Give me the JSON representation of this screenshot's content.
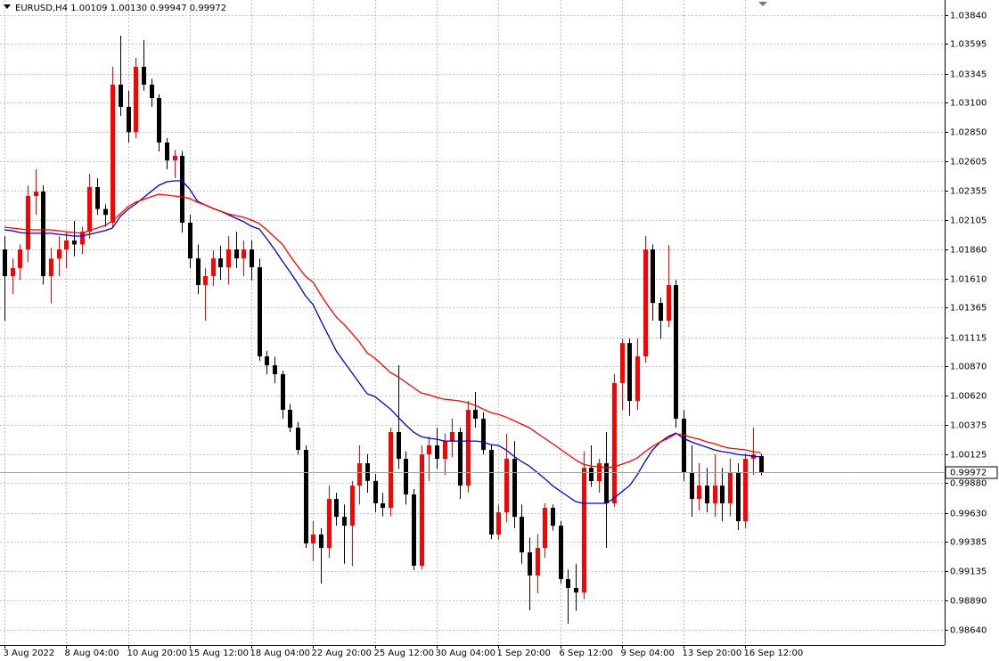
{
  "chart_data": {
    "type": "candlestick",
    "title": "EURUSD,H4  1.00109 1.00130 0.99947 0.99972",
    "categories": [
      "3 Aug 2022",
      null,
      null,
      null,
      null,
      null,
      null,
      null,
      "8 Aug 04:00",
      null,
      null,
      null,
      null,
      null,
      null,
      null,
      "10 Aug 20:00",
      null,
      null,
      null,
      null,
      null,
      null,
      null,
      "15 Aug 12:00",
      null,
      null,
      null,
      null,
      null,
      null,
      null,
      "18 Aug 04:00",
      null,
      null,
      null,
      null,
      null,
      null,
      null,
      "22 Aug 20:00",
      null,
      null,
      null,
      null,
      null,
      null,
      null,
      "25 Aug 12:00",
      null,
      null,
      null,
      null,
      null,
      null,
      null,
      "30 Aug 04:00",
      null,
      null,
      null,
      null,
      null,
      null,
      null,
      "1 Sep 20:00",
      null,
      null,
      null,
      null,
      null,
      null,
      null,
      "6 Sep 12:00",
      null,
      null,
      null,
      null,
      null,
      null,
      null,
      "9 Sep 04:00",
      null,
      null,
      null,
      null,
      null,
      null,
      null,
      "13 Sep 20:00",
      null,
      null,
      null,
      null,
      null,
      null,
      null,
      "16 Sep 12:00",
      null,
      null
    ],
    "open": [
      1.01858,
      1.01632,
      1.017,
      1.01858,
      1.0231,
      1.02348,
      1.01632,
      1.0178,
      1.01858,
      1.01933,
      1.019,
      1.02008,
      1.02385,
      1.022,
      1.02084,
      1.03252,
      1.03064,
      1.0285,
      1.03403,
      1.03252,
      1.03139,
      1.02762,
      1.02611,
      1.0265,
      1.02084,
      1.01782,
      1.01556,
      1.01632,
      1.01782,
      1.01707,
      1.01858,
      1.01782,
      1.01858,
      1.01707,
      1.00953,
      1.00878,
      1.00802,
      1.00501,
      1.0035,
      1.00162,
      0.99371,
      0.99446,
      0.99333,
      0.99747,
      0.99596,
      0.99521,
      0.9986,
      1.00049,
      0.999,
      0.9971,
      0.99672,
      1.00313,
      1.00087,
      0.99785,
      0.99182,
      1.00124,
      1.002,
      1.00087,
      1.00237,
      1.00313,
      0.9986,
      1.00501,
      1.00426,
      1.00162,
      0.99446,
      0.99634,
      1.00087,
      0.99596,
      0.99295,
      0.991,
      0.99333,
      0.99672,
      0.99521,
      0.99069,
      0.98994,
      0.98956,
      1.00011,
      0.99898,
      1.00049,
      0.9971,
      1.00727,
      1.01066,
      1.00576,
      1.00953,
      1.01858,
      1.01405,
      1.01255,
      1.01556,
      1.00426,
      0.99973,
      0.99747,
      0.9986,
      0.9971,
      0.9986,
      0.9971,
      0.99973,
      0.99559,
      1.00087,
      1.00109
    ],
    "high": [
      1.0197,
      1.0178,
      1.019,
      1.024,
      1.02536,
      1.024,
      1.0187,
      1.0197,
      1.02,
      1.021,
      1.0205,
      1.02498,
      1.0246,
      1.0224,
      1.03403,
      1.03667,
      1.032,
      1.03478,
      1.03629,
      1.033,
      1.0317,
      1.028,
      1.027,
      1.0269,
      1.0215,
      1.019,
      1.017,
      1.0185,
      1.0189,
      1.01971,
      1.02008,
      1.01933,
      1.01933,
      1.0178,
      1.01,
      1.0095,
      1.0083,
      1.0055,
      1.004,
      1.002,
      0.9956,
      0.995,
      0.9986,
      0.998,
      0.997,
      0.999,
      1.002,
      1.00126,
      0.9996,
      0.998,
      1.0035,
      1.00878,
      1.0015,
      0.9983,
      1.002,
      1.00275,
      1.0035,
      1.003,
      1.00426,
      1.0035,
      1.00576,
      1.00652,
      1.0048,
      1.002,
      0.997,
      1.003,
      1.00237,
      0.997,
      0.9942,
      0.9945,
      0.9971,
      0.997,
      0.9956,
      0.9915,
      0.992,
      1.0015,
      1.002,
      1.00087,
      1.00313,
      1.00802,
      1.01104,
      1.01104,
      1.01104,
      1.01971,
      1.019,
      1.0145,
      1.01895,
      1.016,
      1.005,
      1.002,
      1.0005,
      1.00011,
      1.00124,
      1.00011,
      1.00087,
      1.00049,
      1.0013,
      1.0035,
      1.0013
    ],
    "low": [
      1.01255,
      1.0148,
      1.016,
      1.0175,
      1.0215,
      1.0156,
      1.014,
      1.0163,
      1.017,
      1.018,
      1.0182,
      1.0195,
      1.0215,
      1.0205,
      1.0205,
      1.02988,
      1.02762,
      1.028,
      1.032,
      1.03064,
      1.02687,
      1.02536,
      1.02461,
      1.02,
      1.017,
      1.0148,
      1.01255,
      1.0155,
      1.016,
      1.0156,
      1.017,
      1.01632,
      1.01594,
      1.00915,
      1.008,
      1.00727,
      1.00426,
      1.00313,
      1.00124,
      0.99333,
      0.9922,
      0.99031,
      0.9925,
      0.99521,
      0.992,
      0.9918,
      0.997,
      0.998,
      0.99634,
      0.996,
      0.996,
      1.0,
      0.997,
      0.99145,
      0.9915,
      0.999,
      1.0,
      0.9995,
      1.001,
      0.99747,
      0.998,
      1.0035,
      1.00124,
      0.99408,
      0.994,
      0.9955,
      0.995,
      0.992,
      0.98805,
      0.9895,
      0.9925,
      0.9948,
      0.99031,
      0.98692,
      0.988,
      0.989,
      0.9985,
      0.998,
      0.99333,
      0.9968,
      1.00501,
      1.0045,
      1.005,
      1.009,
      1.01255,
      1.011,
      1.012,
      1.0035,
      0.999,
      0.99596,
      0.9965,
      0.99634,
      0.99596,
      0.99559,
      0.996,
      0.99484,
      0.995,
      0.9995,
      0.99947
    ],
    "close": [
      1.01632,
      1.017,
      1.01858,
      1.0231,
      1.02348,
      1.01632,
      1.0178,
      1.01858,
      1.01933,
      1.019,
      1.02008,
      1.02385,
      1.022,
      1.0215,
      1.03252,
      1.03064,
      1.0285,
      1.03403,
      1.03252,
      1.03139,
      1.02762,
      1.02611,
      1.0265,
      1.02084,
      1.01782,
      1.01556,
      1.01632,
      1.01782,
      1.01707,
      1.01858,
      1.01782,
      1.01858,
      1.01707,
      1.00953,
      1.00878,
      1.00802,
      1.00501,
      1.0035,
      1.00162,
      0.99371,
      0.99446,
      0.99333,
      0.99747,
      0.99596,
      0.99521,
      0.9986,
      1.00049,
      0.999,
      0.9971,
      0.99672,
      1.00313,
      1.00087,
      0.99785,
      0.99182,
      1.00124,
      1.002,
      1.00087,
      1.00237,
      1.00313,
      0.9986,
      1.00501,
      1.00426,
      1.00162,
      0.99446,
      0.99634,
      1.00087,
      0.99596,
      0.99295,
      0.991,
      0.99333,
      0.99672,
      0.99521,
      0.99069,
      0.98994,
      0.98956,
      1.00011,
      0.99898,
      1.00049,
      0.9971,
      1.00727,
      1.01066,
      1.00576,
      1.00953,
      1.01858,
      1.01405,
      1.01255,
      1.01556,
      1.00426,
      0.99973,
      0.99747,
      0.9986,
      0.9971,
      0.9986,
      0.9971,
      0.99973,
      0.99559,
      1.00087,
      1.00124,
      0.99972
    ],
    "up_color": "#ff0000",
    "down_color": "#000000",
    "series": [
      {
        "color": "#0000c8",
        "values": [
          1.02024,
          1.02016,
          1.02001,
          1.01994,
          1.01994,
          1.01994,
          1.01994,
          1.01986,
          1.01979,
          1.01971,
          1.01971,
          1.01986,
          1.02001,
          1.02016,
          1.02039,
          1.02137,
          1.02197,
          1.02242,
          1.02295,
          1.02348,
          1.024,
          1.0243,
          1.02438,
          1.02438,
          1.0237,
          1.02265,
          1.02235,
          1.02205,
          1.02182,
          1.02152,
          1.02122,
          1.02092,
          1.02054,
          1.02031,
          1.01948,
          1.01858,
          1.0176,
          1.01669,
          1.01571,
          1.01466,
          1.0139,
          1.01255,
          1.01127,
          1.00998,
          1.00908,
          1.00817,
          1.00727,
          1.00637,
          1.00614,
          1.00561,
          1.00508,
          1.0044,
          1.00373,
          1.00313,
          1.00275,
          1.0026,
          1.00253,
          1.00237,
          1.00237,
          1.00237,
          1.00237,
          1.00237,
          1.0023,
          1.00207,
          1.002,
          1.00162,
          1.00109,
          1.00064,
          1.00026,
          0.99973,
          0.9992,
          0.9986,
          0.99815,
          0.9977,
          0.99725,
          0.9971,
          0.9971,
          0.9971,
          0.9971,
          0.99755,
          0.99808,
          0.9986,
          0.99951,
          1.00064,
          1.00162,
          1.0023,
          1.00275,
          1.00305,
          1.0026,
          1.0023,
          1.00207,
          1.00185,
          1.00162,
          1.00147,
          1.00139,
          1.00124,
          1.00117,
          1.00109,
          1.00102
        ]
      },
      {
        "color": "#ff0000",
        "values": [
          1.02046,
          1.02039,
          1.02031,
          1.02024,
          1.02024,
          1.02024,
          1.02024,
          1.02016,
          1.02008,
          1.02001,
          1.01994,
          1.02016,
          1.02039,
          1.02061,
          1.02099,
          1.02159,
          1.0222,
          1.02257,
          1.0228,
          1.02303,
          1.02325,
          1.02318,
          1.0231,
          1.02303,
          1.02288,
          1.02257,
          1.02235,
          1.02205,
          1.02182,
          1.02159,
          1.02144,
          1.02129,
          1.02107,
          1.02077,
          1.02024,
          1.01963,
          1.01903,
          1.01805,
          1.01715,
          1.01632,
          1.01579,
          1.01473,
          1.01375,
          1.01285,
          1.01224,
          1.01149,
          1.01074,
          1.00983,
          1.00938,
          1.00878,
          1.00817,
          1.0078,
          1.00735,
          1.00689,
          1.00644,
          1.00629,
          1.00606,
          1.00591,
          1.00584,
          1.00576,
          1.00561,
          1.00539,
          1.00508,
          1.00478,
          1.00463,
          1.0044,
          1.0041,
          1.0038,
          1.0035,
          1.00305,
          1.0026,
          1.00215,
          1.0017,
          1.00124,
          1.00079,
          1.00041,
          1.00026,
          1.00019,
          1.00011,
          1.00019,
          1.00041,
          1.00064,
          1.00094,
          1.00147,
          1.00192,
          1.0023,
          1.0026,
          1.00298,
          1.0029,
          1.00268,
          1.00253,
          1.0023,
          1.00215,
          1.00192,
          1.00177,
          1.0017,
          1.00162,
          1.00147,
          1.00139
        ]
      }
    ],
    "ylim": [
      0.98512,
      1.03968
    ],
    "yticks": [
      {
        "value": 1.0384,
        "label": "1.03840"
      },
      1.03595,
      1.03345,
      {
        "value": 1.031,
        "label": "1.03100"
      },
      {
        "value": 1.0285,
        "label": "1.02850"
      },
      1.02605,
      1.02355,
      1.02105,
      {
        "value": 1.0186,
        "label": "1.01860"
      },
      {
        "value": 1.0161,
        "label": "1.01610"
      },
      1.01365,
      1.01115,
      {
        "value": 1.0087,
        "label": "1.00870"
      },
      {
        "value": 1.0062,
        "label": "1.00620"
      },
      1.00375,
      1.00125,
      {
        "value": 0.9988,
        "label": "0.99880"
      },
      {
        "value": 0.9963,
        "label": "0.99630"
      },
      0.99385,
      0.99135,
      {
        "value": 0.9889,
        "label": "0.98890"
      },
      {
        "value": 0.9864,
        "label": "0.98640"
      }
    ],
    "grid": true,
    "last_price": 0.99972
  }
}
